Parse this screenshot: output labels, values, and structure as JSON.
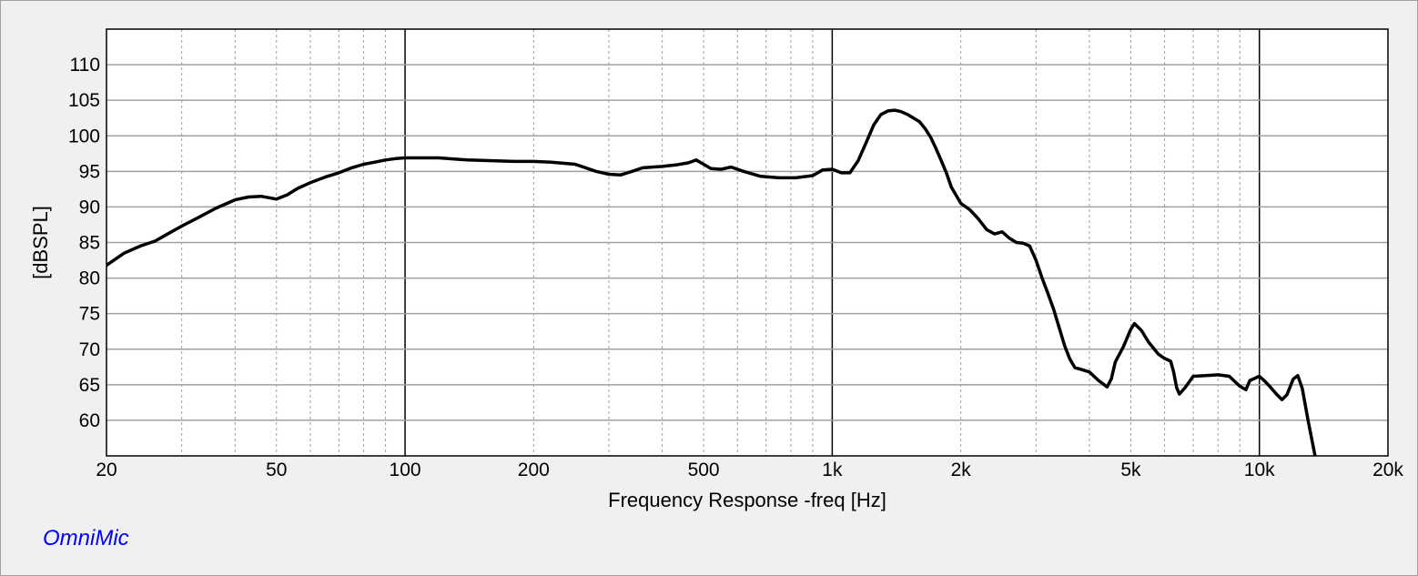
{
  "chart_data": {
    "type": "line",
    "title": "",
    "xlabel": "Frequency Response -freq [Hz]",
    "ylabel": "[dBSPL]",
    "x_scale": "log",
    "xlim": [
      20,
      20000
    ],
    "ylim": [
      55,
      115
    ],
    "grid": true,
    "x_ticks": [
      {
        "value": 20,
        "label": "20"
      },
      {
        "value": 50,
        "label": "50"
      },
      {
        "value": 100,
        "label": "100"
      },
      {
        "value": 200,
        "label": "200"
      },
      {
        "value": 500,
        "label": "500"
      },
      {
        "value": 1000,
        "label": "1k"
      },
      {
        "value": 2000,
        "label": "2k"
      },
      {
        "value": 5000,
        "label": "5k"
      },
      {
        "value": 10000,
        "label": "10k"
      },
      {
        "value": 20000,
        "label": "20k"
      }
    ],
    "y_ticks": [
      60,
      65,
      70,
      75,
      80,
      85,
      90,
      95,
      100,
      105,
      110
    ],
    "line_color": "#000000",
    "series": [
      {
        "x": [
          20,
          22,
          24,
          26,
          28,
          30,
          33,
          36,
          40,
          43,
          46,
          50,
          53,
          56,
          60,
          65,
          70,
          75,
          80,
          85,
          90,
          95,
          100,
          110,
          120,
          140,
          160,
          180,
          200,
          220,
          250,
          280,
          300,
          320,
          340,
          360,
          400,
          430,
          460,
          480,
          500,
          520,
          550,
          580,
          620,
          680,
          750,
          820,
          900,
          950,
          1000,
          1050,
          1100,
          1150,
          1200,
          1250,
          1300,
          1350,
          1400,
          1450,
          1500,
          1550,
          1600,
          1650,
          1700,
          1750,
          1800,
          1850,
          1900,
          2000,
          2100,
          2200,
          2300,
          2400,
          2500,
          2600,
          2700,
          2800,
          2900,
          3000,
          3100,
          3200,
          3300,
          3400,
          3500,
          3600,
          3700,
          3800,
          4000,
          4200,
          4400,
          4500,
          4600,
          4800,
          5000,
          5100,
          5300,
          5500,
          5800,
          6000,
          6200,
          6300,
          6400,
          6500,
          6700,
          7000,
          7500,
          8000,
          8500,
          9000,
          9300,
          9500,
          10000,
          10300,
          10600,
          11000,
          11300,
          11600,
          12000,
          12300,
          12600,
          13000,
          13500
        ],
        "y": [
          81.8,
          83.5,
          84.5,
          85.2,
          86.3,
          87.3,
          88.6,
          89.8,
          91.0,
          91.4,
          91.5,
          91.1,
          91.7,
          92.6,
          93.4,
          94.2,
          94.8,
          95.5,
          96.0,
          96.3,
          96.6,
          96.8,
          96.9,
          96.9,
          96.9,
          96.6,
          96.5,
          96.4,
          96.4,
          96.3,
          96.0,
          95.0,
          94.6,
          94.5,
          95.0,
          95.5,
          95.7,
          95.9,
          96.2,
          96.6,
          96.0,
          95.4,
          95.3,
          95.6,
          95.0,
          94.3,
          94.1,
          94.1,
          94.4,
          95.2,
          95.3,
          94.8,
          94.8,
          96.5,
          99.0,
          101.5,
          103.0,
          103.5,
          103.6,
          103.4,
          103.0,
          102.5,
          102.0,
          101.0,
          99.8,
          98.2,
          96.5,
          94.8,
          92.8,
          90.5,
          89.6,
          88.3,
          86.8,
          86.2,
          86.5,
          85.6,
          85.0,
          84.9,
          84.5,
          82.5,
          80.0,
          77.8,
          75.6,
          73.0,
          70.5,
          68.6,
          67.4,
          67.2,
          66.8,
          65.6,
          64.7,
          65.8,
          68.2,
          70.3,
          72.8,
          73.6,
          72.6,
          71.0,
          69.3,
          68.7,
          68.3,
          66.8,
          64.6,
          63.7,
          64.6,
          66.2,
          66.3,
          66.4,
          66.2,
          64.8,
          64.3,
          65.6,
          66.2,
          65.5,
          64.7,
          63.6,
          62.9,
          63.6,
          65.8,
          66.3,
          64.5,
          60.0,
          55.0
        ]
      }
    ]
  },
  "footer": {
    "brand": "OmniMic",
    "brand_color": "#0000ff"
  }
}
